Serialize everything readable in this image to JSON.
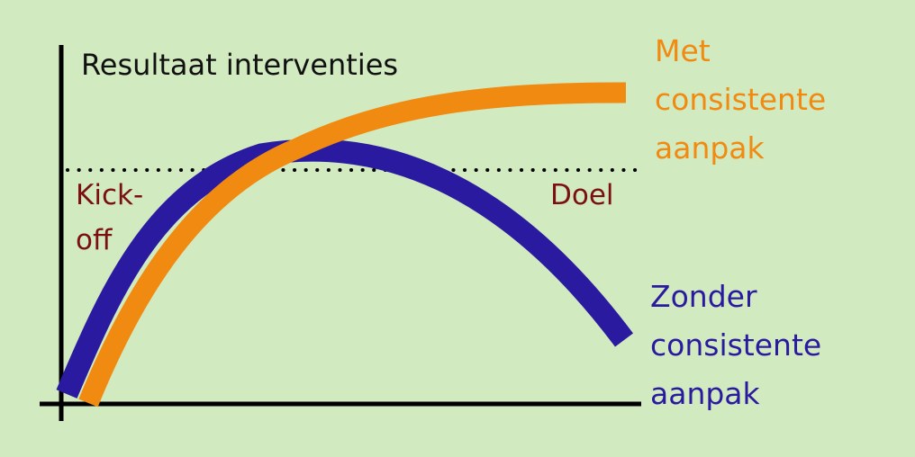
{
  "diagram": {
    "title": "Resultaat interventies",
    "start_label": {
      "line1": "Kick-",
      "line2": "off"
    },
    "goal_label": "Doel",
    "with_approach": {
      "line1": "Met",
      "line2": "consistente",
      "line3": "aanpak",
      "color": "#f08a10"
    },
    "without_approach": {
      "line1": "Zonder",
      "line2": "consistente",
      "line3": "aanpak",
      "color": "#2a1aa0"
    },
    "colors": {
      "background": "#d2eac0",
      "axes": "#000000",
      "goal_line": "#000000",
      "start_goal_text": "#7a1010"
    }
  }
}
